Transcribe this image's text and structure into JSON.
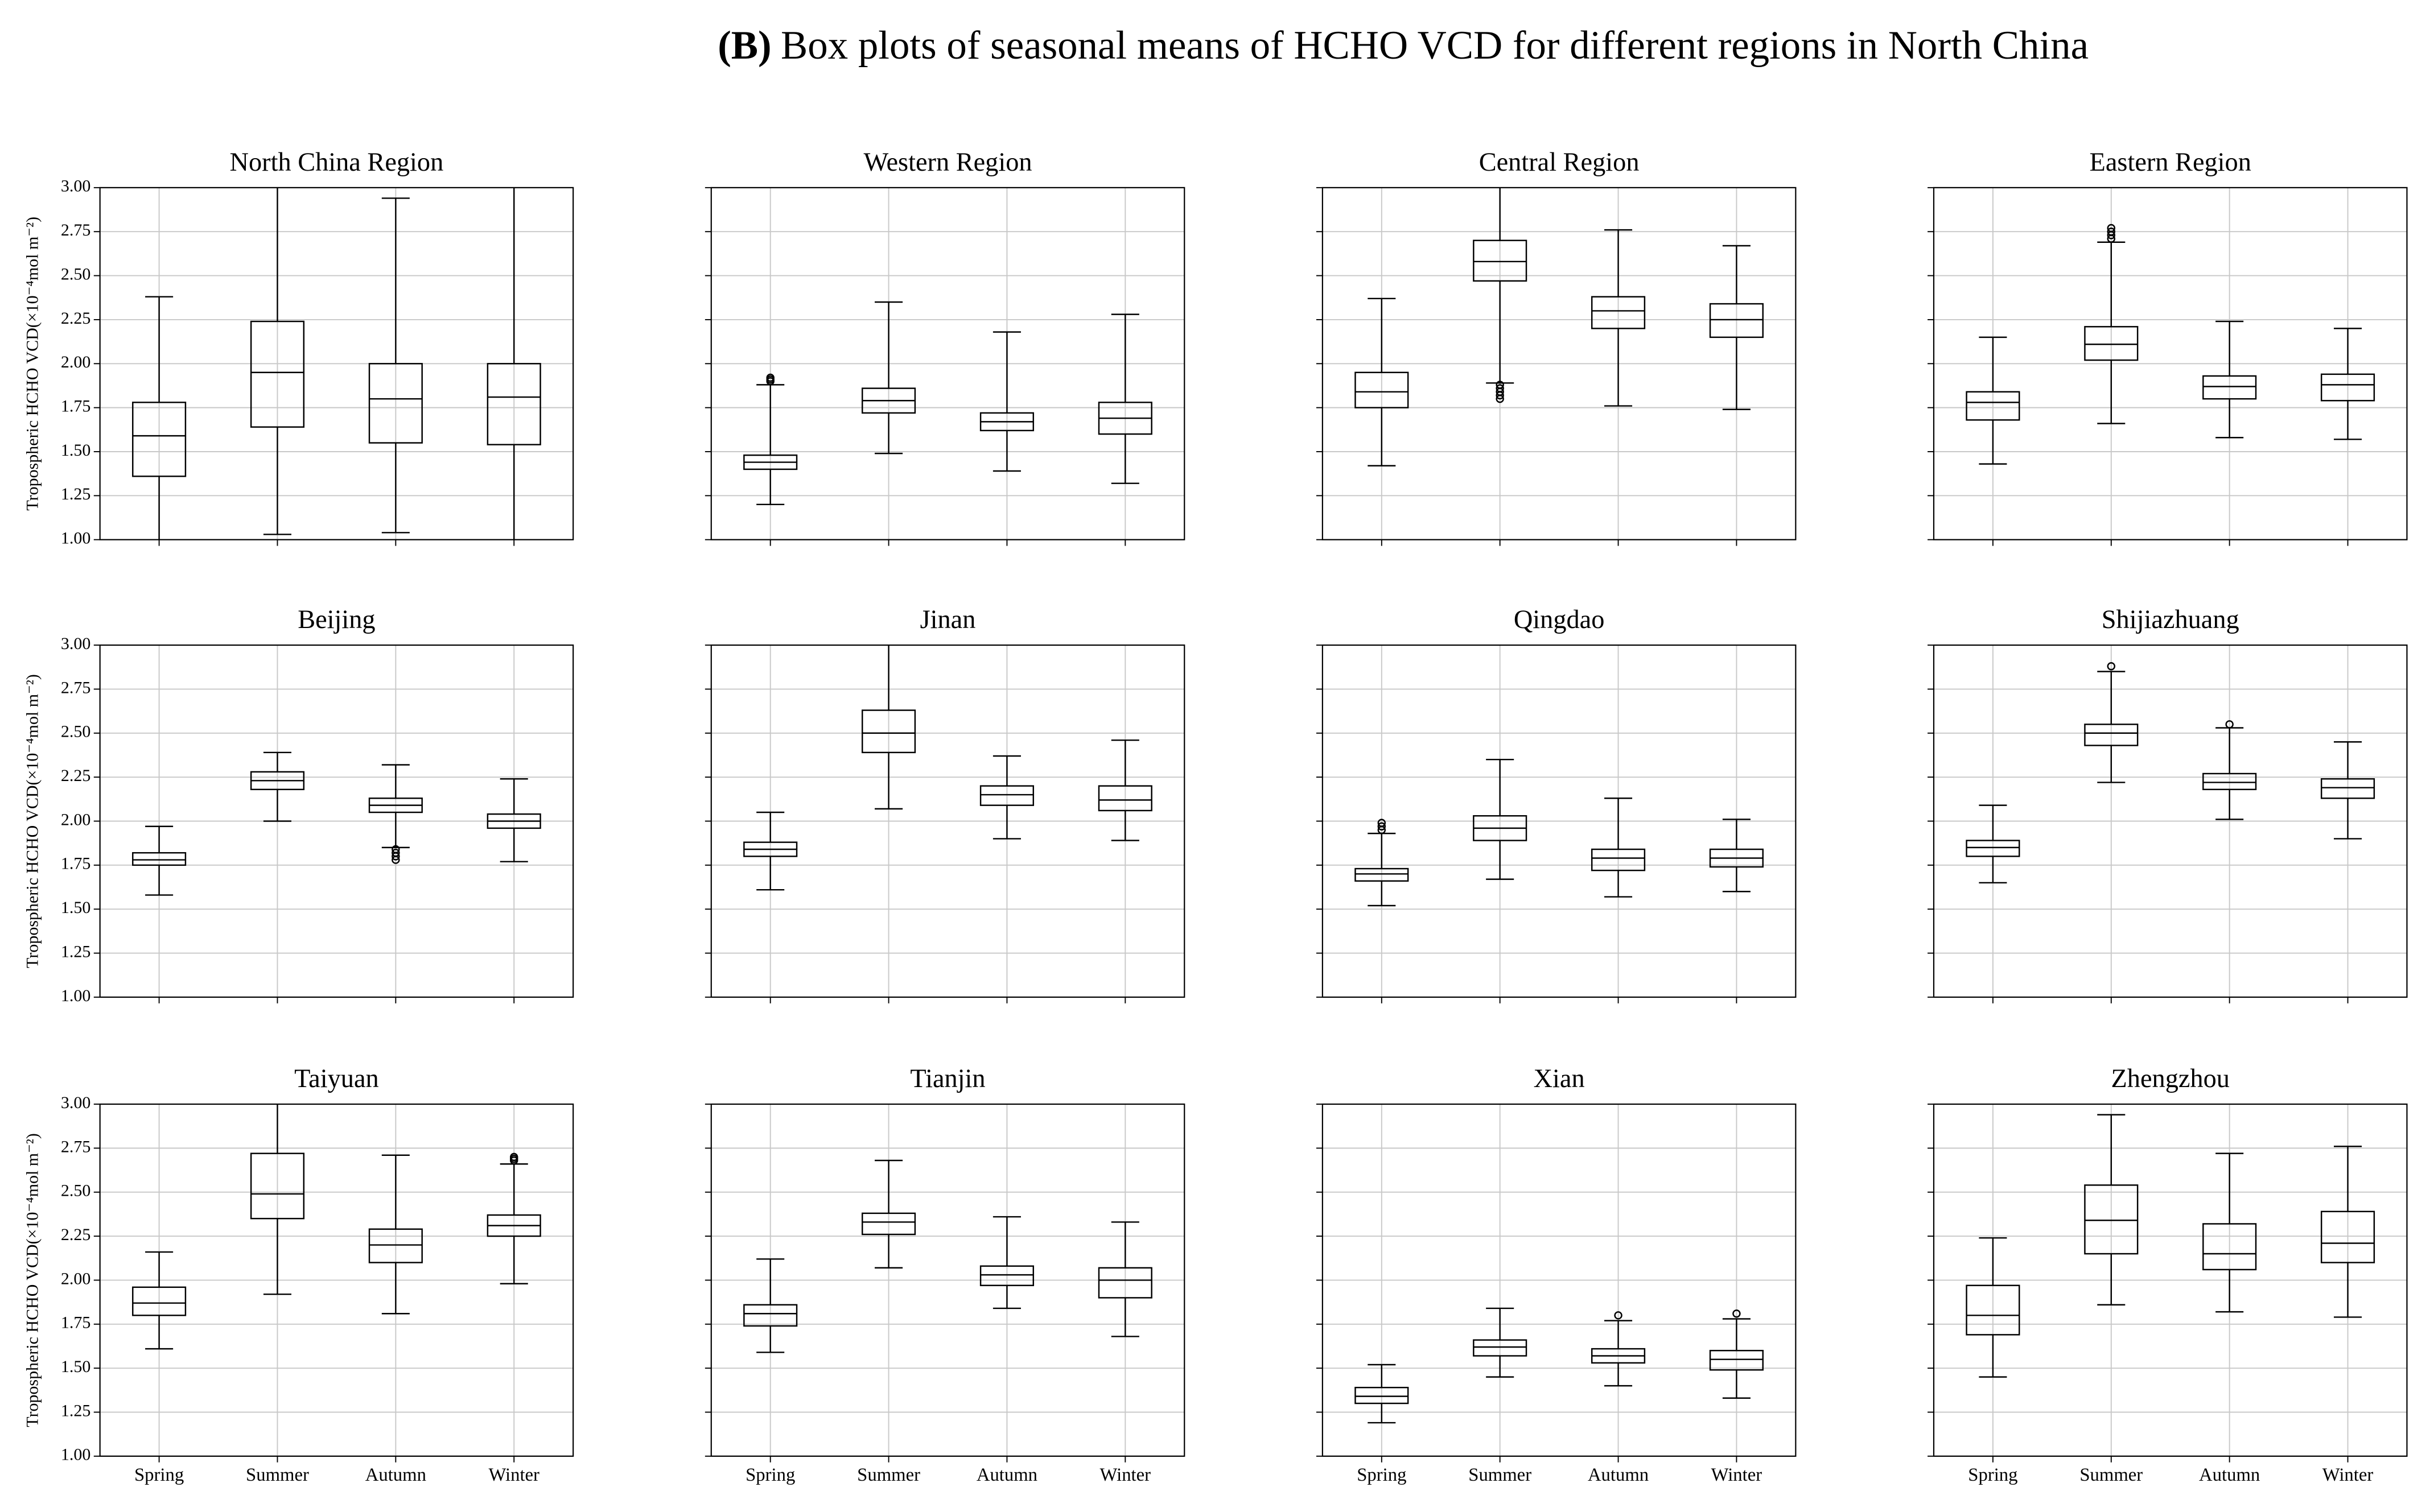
{
  "figure": {
    "label": "(B)",
    "title": "Box plots of seasonal means of HCHO VCD for different regions in North China",
    "ylabel": "Tropospheric HCHO VCD(×10⁻⁴mol m⁻²)",
    "categories": [
      "Spring",
      "Summer",
      "Autumn",
      "Winter"
    ],
    "ylim": [
      1,
      3
    ],
    "yticks": [
      {
        "value": 1,
        "label": "1.00"
      },
      {
        "value": 1.25,
        "label": "1.25"
      },
      {
        "value": 1.5,
        "label": "1.50"
      },
      {
        "value": 1.75,
        "label": "1.75"
      },
      {
        "value": 2,
        "label": "2.00"
      },
      {
        "value": 2.25,
        "label": "2.25"
      },
      {
        "value": 2.5,
        "label": "2.50"
      },
      {
        "value": 2.75,
        "label": "2.75"
      },
      {
        "value": 3,
        "label": "3.00"
      }
    ],
    "grid": true,
    "color": "#000000"
  },
  "chart_data": [
    {
      "type": "box",
      "title": "North China Region",
      "boxes": [
        {
          "whislo": 0.98,
          "q1": 1.36,
          "med": 1.59,
          "q3": 1.78,
          "whishi": 2.38,
          "fliers": []
        },
        {
          "whislo": 1.03,
          "q1": 1.64,
          "med": 1.95,
          "q3": 2.24,
          "whishi": 3.1,
          "fliers": []
        },
        {
          "whislo": 1.04,
          "q1": 1.55,
          "med": 1.8,
          "q3": 2.0,
          "whishi": 2.94,
          "fliers": []
        },
        {
          "whislo": 0.97,
          "q1": 1.54,
          "med": 1.81,
          "q3": 2.0,
          "whishi": 3.05,
          "fliers": []
        }
      ]
    },
    {
      "type": "box",
      "title": "Western Region",
      "boxes": [
        {
          "whislo": 1.2,
          "q1": 1.4,
          "med": 1.44,
          "q3": 1.48,
          "whishi": 1.88,
          "fliers": [
            1.9,
            1.91,
            1.92
          ]
        },
        {
          "whislo": 1.49,
          "q1": 1.72,
          "med": 1.79,
          "q3": 1.86,
          "whishi": 2.35,
          "fliers": []
        },
        {
          "whislo": 1.39,
          "q1": 1.62,
          "med": 1.67,
          "q3": 1.72,
          "whishi": 2.18,
          "fliers": []
        },
        {
          "whislo": 1.32,
          "q1": 1.6,
          "med": 1.69,
          "q3": 1.78,
          "whishi": 2.28,
          "fliers": []
        }
      ]
    },
    {
      "type": "box",
      "title": "Central Region",
      "boxes": [
        {
          "whislo": 1.42,
          "q1": 1.75,
          "med": 1.84,
          "q3": 1.95,
          "whishi": 2.37,
          "fliers": []
        },
        {
          "whislo": 1.89,
          "q1": 2.47,
          "med": 2.58,
          "q3": 2.7,
          "whishi": 3.05,
          "fliers": [
            1.8,
            1.82,
            1.84,
            1.86,
            1.88
          ]
        },
        {
          "whislo": 1.76,
          "q1": 2.2,
          "med": 2.3,
          "q3": 2.38,
          "whishi": 2.76,
          "fliers": []
        },
        {
          "whislo": 1.74,
          "q1": 2.15,
          "med": 2.25,
          "q3": 2.34,
          "whishi": 2.67,
          "fliers": []
        }
      ]
    },
    {
      "type": "box",
      "title": "Eastern Region",
      "boxes": [
        {
          "whislo": 1.43,
          "q1": 1.68,
          "med": 1.78,
          "q3": 1.84,
          "whishi": 2.15,
          "fliers": []
        },
        {
          "whislo": 1.66,
          "q1": 2.02,
          "med": 2.11,
          "q3": 2.21,
          "whishi": 2.69,
          "fliers": [
            2.71,
            2.73,
            2.75,
            2.77
          ]
        },
        {
          "whislo": 1.58,
          "q1": 1.8,
          "med": 1.87,
          "q3": 1.93,
          "whishi": 2.24,
          "fliers": []
        },
        {
          "whislo": 1.57,
          "q1": 1.79,
          "med": 1.88,
          "q3": 1.94,
          "whishi": 2.2,
          "fliers": []
        }
      ]
    },
    {
      "type": "box",
      "title": "Beijing",
      "boxes": [
        {
          "whislo": 1.58,
          "q1": 1.75,
          "med": 1.78,
          "q3": 1.82,
          "whishi": 1.97,
          "fliers": []
        },
        {
          "whislo": 2.0,
          "q1": 2.18,
          "med": 2.23,
          "q3": 2.28,
          "whishi": 2.39,
          "fliers": []
        },
        {
          "whislo": 1.85,
          "q1": 2.05,
          "med": 2.09,
          "q3": 2.13,
          "whishi": 2.32,
          "fliers": [
            1.78,
            1.8,
            1.82,
            1.84
          ]
        },
        {
          "whislo": 1.77,
          "q1": 1.96,
          "med": 2.0,
          "q3": 2.04,
          "whishi": 2.24,
          "fliers": []
        }
      ]
    },
    {
      "type": "box",
      "title": "Jinan",
      "boxes": [
        {
          "whislo": 1.61,
          "q1": 1.8,
          "med": 1.84,
          "q3": 1.88,
          "whishi": 2.05,
          "fliers": []
        },
        {
          "whislo": 2.07,
          "q1": 2.39,
          "med": 2.5,
          "q3": 2.63,
          "whishi": 3.02,
          "fliers": []
        },
        {
          "whislo": 1.9,
          "q1": 2.09,
          "med": 2.15,
          "q3": 2.2,
          "whishi": 2.37,
          "fliers": []
        },
        {
          "whislo": 1.89,
          "q1": 2.06,
          "med": 2.12,
          "q3": 2.2,
          "whishi": 2.46,
          "fliers": []
        }
      ]
    },
    {
      "type": "box",
      "title": "Qingdao",
      "boxes": [
        {
          "whislo": 1.52,
          "q1": 1.66,
          "med": 1.7,
          "q3": 1.73,
          "whishi": 1.93,
          "fliers": [
            1.95,
            1.97,
            1.99
          ]
        },
        {
          "whislo": 1.67,
          "q1": 1.89,
          "med": 1.96,
          "q3": 2.03,
          "whishi": 2.35,
          "fliers": []
        },
        {
          "whislo": 1.57,
          "q1": 1.72,
          "med": 1.79,
          "q3": 1.84,
          "whishi": 2.13,
          "fliers": []
        },
        {
          "whislo": 1.6,
          "q1": 1.74,
          "med": 1.79,
          "q3": 1.84,
          "whishi": 2.01,
          "fliers": []
        }
      ]
    },
    {
      "type": "box",
      "title": "Shijiazhuang",
      "boxes": [
        {
          "whislo": 1.65,
          "q1": 1.8,
          "med": 1.85,
          "q3": 1.89,
          "whishi": 2.09,
          "fliers": []
        },
        {
          "whislo": 2.22,
          "q1": 2.43,
          "med": 2.5,
          "q3": 2.55,
          "whishi": 2.85,
          "fliers": [
            2.88
          ]
        },
        {
          "whislo": 2.01,
          "q1": 2.18,
          "med": 2.22,
          "q3": 2.27,
          "whishi": 2.53,
          "fliers": [
            2.55
          ]
        },
        {
          "whislo": 1.9,
          "q1": 2.13,
          "med": 2.19,
          "q3": 2.24,
          "whishi": 2.45,
          "fliers": []
        }
      ]
    },
    {
      "type": "box",
      "title": "Taiyuan",
      "boxes": [
        {
          "whislo": 1.61,
          "q1": 1.8,
          "med": 1.87,
          "q3": 1.96,
          "whishi": 2.16,
          "fliers": []
        },
        {
          "whislo": 1.92,
          "q1": 2.35,
          "med": 2.49,
          "q3": 2.72,
          "whishi": 3.05,
          "fliers": []
        },
        {
          "whislo": 1.81,
          "q1": 2.1,
          "med": 2.2,
          "q3": 2.29,
          "whishi": 2.71,
          "fliers": []
        },
        {
          "whislo": 1.98,
          "q1": 2.25,
          "med": 2.31,
          "q3": 2.37,
          "whishi": 2.66,
          "fliers": [
            2.68,
            2.69,
            2.7
          ]
        }
      ]
    },
    {
      "type": "box",
      "title": "Tianjin",
      "boxes": [
        {
          "whislo": 1.59,
          "q1": 1.74,
          "med": 1.81,
          "q3": 1.86,
          "whishi": 2.12,
          "fliers": []
        },
        {
          "whislo": 2.07,
          "q1": 2.26,
          "med": 2.33,
          "q3": 2.38,
          "whishi": 2.68,
          "fliers": []
        },
        {
          "whislo": 1.84,
          "q1": 1.97,
          "med": 2.03,
          "q3": 2.08,
          "whishi": 2.36,
          "fliers": []
        },
        {
          "whislo": 1.68,
          "q1": 1.9,
          "med": 2.0,
          "q3": 2.07,
          "whishi": 2.33,
          "fliers": []
        }
      ]
    },
    {
      "type": "box",
      "title": "Xian",
      "boxes": [
        {
          "whislo": 1.19,
          "q1": 1.3,
          "med": 1.34,
          "q3": 1.39,
          "whishi": 1.52,
          "fliers": []
        },
        {
          "whislo": 1.45,
          "q1": 1.57,
          "med": 1.62,
          "q3": 1.66,
          "whishi": 1.84,
          "fliers": []
        },
        {
          "whislo": 1.4,
          "q1": 1.53,
          "med": 1.57,
          "q3": 1.61,
          "whishi": 1.77,
          "fliers": [
            1.8
          ]
        },
        {
          "whislo": 1.33,
          "q1": 1.49,
          "med": 1.55,
          "q3": 1.6,
          "whishi": 1.78,
          "fliers": [
            1.81
          ]
        }
      ]
    },
    {
      "type": "box",
      "title": "Zhengzhou",
      "boxes": [
        {
          "whislo": 1.45,
          "q1": 1.69,
          "med": 1.8,
          "q3": 1.97,
          "whishi": 2.24,
          "fliers": []
        },
        {
          "whislo": 1.86,
          "q1": 2.15,
          "med": 2.34,
          "q3": 2.54,
          "whishi": 2.94,
          "fliers": []
        },
        {
          "whislo": 1.82,
          "q1": 2.06,
          "med": 2.15,
          "q3": 2.32,
          "whishi": 2.72,
          "fliers": []
        },
        {
          "whislo": 1.79,
          "q1": 2.1,
          "med": 2.21,
          "q3": 2.39,
          "whishi": 2.76,
          "fliers": []
        }
      ]
    }
  ]
}
